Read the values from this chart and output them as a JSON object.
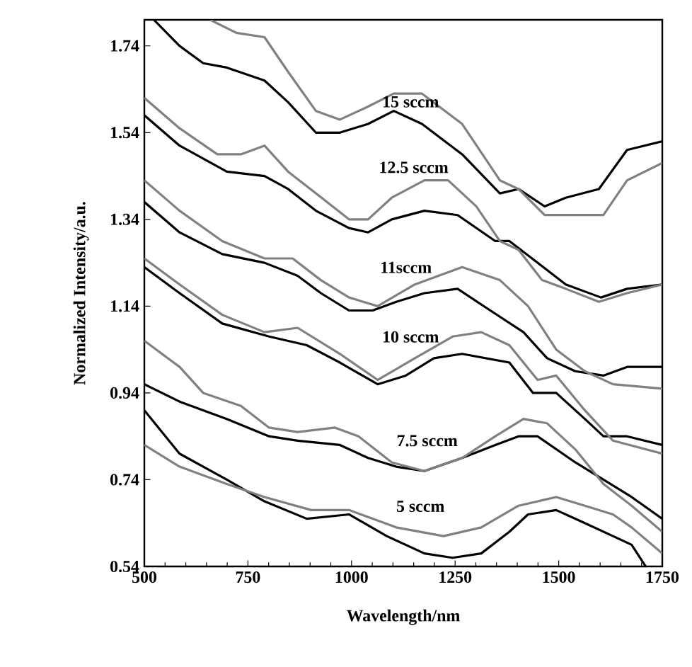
{
  "chart_data": {
    "type": "line",
    "xlabel": "Wavelength/nm",
    "ylabel": "Normalized Intensity/a.u.",
    "xlim": [
      500,
      1750
    ],
    "xticks": [
      500,
      750,
      1000,
      1250,
      1500,
      1750
    ],
    "ylim": [
      0.54,
      1.8
    ],
    "yticks": [
      0.54,
      0.74,
      0.94,
      1.14,
      1.34,
      1.54,
      1.74
    ],
    "grid": false,
    "marker": "none",
    "line_style": "solid",
    "series": [
      {
        "color": "#000000",
        "x": [
          523,
          585,
          642,
          699,
          790,
          847,
          914,
          972,
          1040,
          1102,
          1170,
          1267,
          1358,
          1403,
          1466,
          1517,
          1597,
          1665,
          1750
        ],
        "values": [
          1.8,
          1.74,
          1.7,
          1.69,
          1.66,
          1.61,
          1.54,
          1.54,
          1.56,
          1.59,
          1.56,
          1.49,
          1.4,
          1.41,
          1.37,
          1.39,
          1.41,
          1.5,
          1.52
        ]
      },
      {
        "color": "#808080",
        "x": [
          659,
          722,
          790,
          847,
          914,
          972,
          1040,
          1102,
          1170,
          1267,
          1358,
          1403,
          1466,
          1528,
          1608,
          1665,
          1750
        ],
        "values": [
          1.8,
          1.77,
          1.76,
          1.68,
          1.59,
          1.57,
          1.6,
          1.63,
          1.63,
          1.56,
          1.43,
          1.41,
          1.35,
          1.35,
          1.35,
          1.43,
          1.47
        ]
      },
      {
        "color": "#000000",
        "x": [
          500,
          585,
          699,
          790,
          847,
          914,
          994,
          1040,
          1097,
          1176,
          1256,
          1347,
          1381,
          1449,
          1517,
          1602,
          1665,
          1750
        ],
        "values": [
          1.58,
          1.51,
          1.45,
          1.44,
          1.41,
          1.36,
          1.32,
          1.31,
          1.34,
          1.36,
          1.35,
          1.29,
          1.29,
          1.24,
          1.19,
          1.16,
          1.18,
          1.19
        ]
      },
      {
        "color": "#808080",
        "x": [
          500,
          585,
          676,
          733,
          790,
          847,
          914,
          994,
          1040,
          1097,
          1176,
          1233,
          1301,
          1358,
          1403,
          1460,
          1517,
          1597,
          1665,
          1750
        ],
        "values": [
          1.62,
          1.55,
          1.49,
          1.49,
          1.51,
          1.45,
          1.4,
          1.34,
          1.34,
          1.39,
          1.43,
          1.43,
          1.37,
          1.29,
          1.27,
          1.2,
          1.18,
          1.15,
          1.17,
          1.19
        ]
      },
      {
        "color": "#000000",
        "x": [
          500,
          585,
          688,
          790,
          870,
          926,
          994,
          1051,
          1108,
          1176,
          1256,
          1335,
          1415,
          1472,
          1540,
          1608,
          1665,
          1750
        ],
        "values": [
          1.38,
          1.31,
          1.26,
          1.24,
          1.21,
          1.17,
          1.13,
          1.13,
          1.15,
          1.17,
          1.18,
          1.13,
          1.08,
          1.02,
          0.99,
          0.98,
          1.0,
          1.0
        ]
      },
      {
        "color": "#808080",
        "x": [
          500,
          585,
          688,
          790,
          858,
          926,
          994,
          1063,
          1153,
          1267,
          1358,
          1426,
          1494,
          1563,
          1631,
          1750
        ],
        "values": [
          1.43,
          1.36,
          1.29,
          1.25,
          1.25,
          1.2,
          1.16,
          1.14,
          1.19,
          1.23,
          1.2,
          1.14,
          1.04,
          0.99,
          0.96,
          0.95
        ]
      },
      {
        "color": "#000000",
        "x": [
          500,
          585,
          688,
          801,
          892,
          972,
          1063,
          1131,
          1199,
          1267,
          1381,
          1438,
          1494,
          1563,
          1608,
          1665,
          1750
        ],
        "values": [
          1.23,
          1.17,
          1.1,
          1.07,
          1.05,
          1.01,
          0.96,
          0.98,
          1.02,
          1.03,
          1.01,
          0.94,
          0.94,
          0.88,
          0.84,
          0.84,
          0.82
        ]
      },
      {
        "color": "#808080",
        "x": [
          500,
          585,
          688,
          790,
          870,
          972,
          1063,
          1153,
          1244,
          1313,
          1381,
          1449,
          1494,
          1563,
          1631,
          1750
        ],
        "values": [
          1.25,
          1.19,
          1.12,
          1.08,
          1.09,
          1.03,
          0.97,
          1.02,
          1.07,
          1.08,
          1.05,
          0.97,
          0.98,
          0.9,
          0.83,
          0.8
        ]
      },
      {
        "color": "#000000",
        "x": [
          500,
          585,
          699,
          801,
          870,
          972,
          1040,
          1108,
          1176,
          1267,
          1347,
          1403,
          1449,
          1540,
          1608,
          1676,
          1750
        ],
        "values": [
          0.96,
          0.92,
          0.88,
          0.84,
          0.83,
          0.82,
          0.79,
          0.77,
          0.76,
          0.79,
          0.82,
          0.84,
          0.84,
          0.78,
          0.74,
          0.7,
          0.65
        ]
      },
      {
        "color": "#808080",
        "x": [
          500,
          585,
          642,
          733,
          801,
          870,
          960,
          1017,
          1097,
          1176,
          1267,
          1347,
          1415,
          1472,
          1540,
          1608,
          1676,
          1750
        ],
        "values": [
          1.06,
          1.0,
          0.94,
          0.91,
          0.86,
          0.85,
          0.86,
          0.84,
          0.78,
          0.76,
          0.79,
          0.84,
          0.88,
          0.87,
          0.81,
          0.73,
          0.68,
          0.62
        ]
      },
      {
        "color": "#000000",
        "x": [
          500,
          585,
          699,
          790,
          892,
          994,
          1085,
          1176,
          1244,
          1313,
          1381,
          1426,
          1494,
          1563,
          1631,
          1676,
          1710
        ],
        "values": [
          0.9,
          0.8,
          0.74,
          0.69,
          0.65,
          0.66,
          0.61,
          0.57,
          0.56,
          0.57,
          0.62,
          0.66,
          0.67,
          0.64,
          0.61,
          0.59,
          0.54
        ]
      },
      {
        "color": "#808080",
        "x": [
          500,
          585,
          699,
          790,
          903,
          994,
          1108,
          1222,
          1313,
          1403,
          1494,
          1563,
          1631,
          1676,
          1750
        ],
        "values": [
          0.82,
          0.77,
          0.73,
          0.7,
          0.67,
          0.67,
          0.63,
          0.61,
          0.63,
          0.68,
          0.7,
          0.68,
          0.66,
          0.63,
          0.57
        ]
      }
    ],
    "annotations": [
      "15 sccm",
      "12.5 sccm",
      "11sccm",
      "10 sccm",
      "7.5 sccm",
      "5 sccm"
    ]
  }
}
